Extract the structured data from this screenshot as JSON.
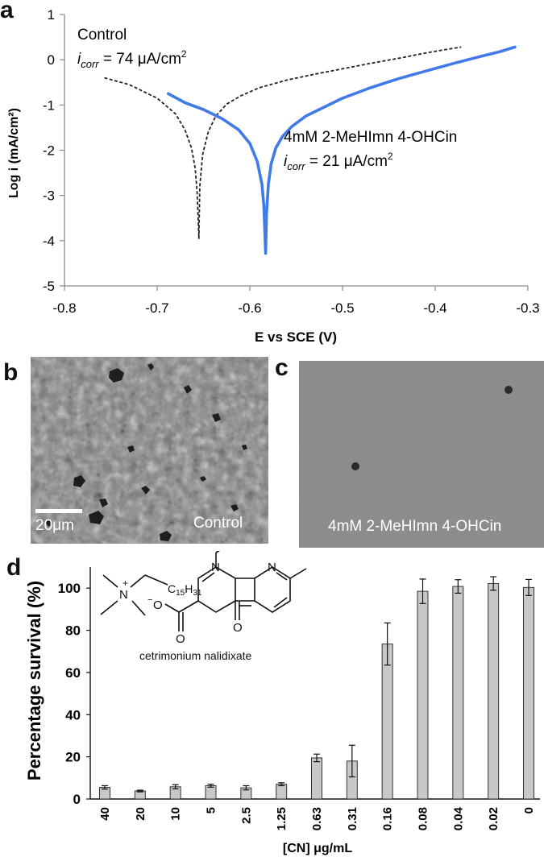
{
  "panels": {
    "a": "a",
    "b": "b",
    "c": "c",
    "d": "d"
  },
  "chart_data": [
    {
      "type": "line",
      "xlabel": "E vs SCE (V)",
      "ylabel": "Log i (mA/cm²)",
      "xlim": [
        -0.8,
        -0.3
      ],
      "ylim": [
        -5,
        1
      ],
      "x_ticks": [
        "-0.8",
        "-0.7",
        "-0.6",
        "-0.5",
        "-0.4",
        "-0.3"
      ],
      "y_ticks": [
        "1",
        "0",
        "-1",
        "-2",
        "-3",
        "-4",
        "-5"
      ],
      "grid": false,
      "annotations": {
        "control_name": "Control",
        "control_icorr_sym": "i",
        "control_icorr_sub": "corr",
        "control_icorr_value": " = 74 μA/cm",
        "control_icorr_sup": "2",
        "treated_name": "4mM 2-MeHImn 4-OHCin",
        "treated_icorr_sym": "i",
        "treated_icorr_sub": "corr",
        "treated_icorr_value": " = 21 μA/cm",
        "treated_icorr_sup": "2"
      },
      "series": [
        {
          "color": "#222222",
          "style": "dashed",
          "x": [
            -0.757,
            -0.73,
            -0.7,
            -0.68,
            -0.67,
            -0.663,
            -0.659,
            -0.657,
            -0.656,
            -0.655,
            -0.654,
            -0.651,
            -0.645,
            -0.637,
            -0.625,
            -0.61,
            -0.59,
            -0.56,
            -0.53,
            -0.5,
            -0.47,
            -0.44,
            -0.41,
            -0.39,
            -0.372
          ],
          "y": [
            -0.4,
            -0.55,
            -0.85,
            -1.2,
            -1.55,
            -1.95,
            -2.4,
            -2.9,
            -3.4,
            -3.95,
            -2.8,
            -2.1,
            -1.6,
            -1.25,
            -0.98,
            -0.8,
            -0.62,
            -0.45,
            -0.32,
            -0.2,
            -0.08,
            0.03,
            0.15,
            0.22,
            0.28
          ]
        },
        {
          "color": "#3f7ae8",
          "style": "solid",
          "x": [
            -0.688,
            -0.67,
            -0.65,
            -0.63,
            -0.612,
            -0.6,
            -0.592,
            -0.587,
            -0.585,
            -0.584,
            -0.583,
            -0.582,
            -0.58,
            -0.577,
            -0.572,
            -0.565,
            -0.555,
            -0.54,
            -0.52,
            -0.5,
            -0.47,
            -0.44,
            -0.41,
            -0.38,
            -0.35,
            -0.33,
            -0.314
          ],
          "y": [
            -0.75,
            -0.95,
            -1.1,
            -1.3,
            -1.55,
            -1.85,
            -2.25,
            -2.75,
            -3.2,
            -3.7,
            -4.28,
            -3.4,
            -2.75,
            -2.3,
            -1.95,
            -1.7,
            -1.48,
            -1.25,
            -1.05,
            -0.85,
            -0.62,
            -0.42,
            -0.25,
            -0.08,
            0.08,
            0.18,
            0.28
          ]
        }
      ]
    },
    {
      "type": "bar",
      "xlabel": "[CN] μg/mL",
      "ylabel": "Percentage survival (%)",
      "ylim": [
        0,
        110
      ],
      "y_ticks": [
        "0",
        "20",
        "40",
        "60",
        "80",
        "100"
      ],
      "grid": false,
      "categories": [
        "40",
        "20",
        "10",
        "5",
        "2.5",
        "1.25",
        "0.63",
        "0.31",
        "0.16",
        "0.08",
        "0.04",
        "0.02",
        "0"
      ],
      "values": [
        5.5,
        3.8,
        5.8,
        6.3,
        5.3,
        7.0,
        19.5,
        18.0,
        73.5,
        98.5,
        100.8,
        102.2,
        100.3
      ],
      "errors": [
        0.8,
        0.4,
        1.0,
        0.7,
        1.0,
        0.7,
        1.8,
        7.5,
        10.0,
        5.8,
        3.2,
        3.2,
        3.8
      ],
      "bar_color": "#c8c8c8"
    }
  ],
  "sem": {
    "b_label": "Control",
    "b_scale": "20μm",
    "c_label": "4mM 2-MeHImn 4-OHCin"
  },
  "structure": {
    "caption": "cetrimonium nalidixate",
    "alkyl": "C",
    "alkyl_sub1": "15",
    "alkyl_h": "H",
    "alkyl_sub2": "31",
    "n_plus": "N",
    "charge_plus": "+",
    "n_ring": "N",
    "n_ring2": "N",
    "o_minus": "O",
    "charge_minus": "−",
    "o_carbonyl": "O",
    "o_keto": "O"
  }
}
